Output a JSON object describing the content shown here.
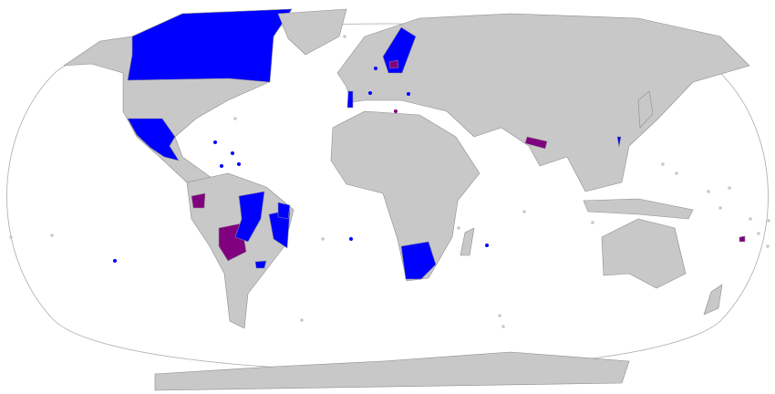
{
  "map": {
    "projection": "Robinson",
    "colors": {
      "ocean": "#ffffff",
      "land_default": "#c8c8c8",
      "border": "#8c8c8c",
      "category_blue": "#0000ff",
      "category_purple": "#800080"
    }
  }
}
